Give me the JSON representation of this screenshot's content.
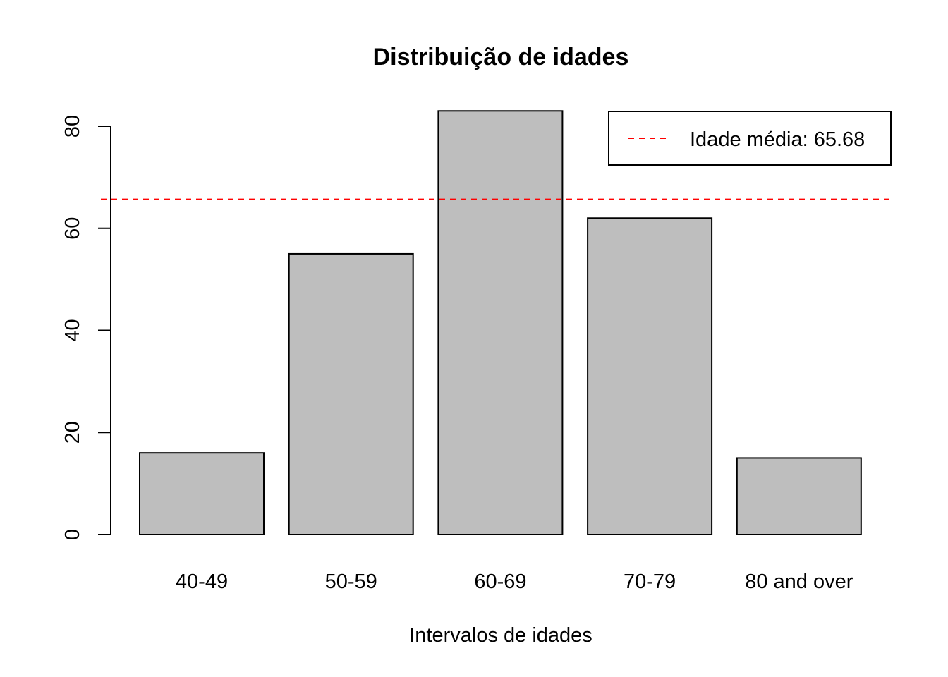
{
  "chart_data": {
    "type": "bar",
    "title": "Distribuição de idades",
    "xlabel": "Intervalos de idades",
    "ylabel": "",
    "categories": [
      "40-49",
      "50-59",
      "60-69",
      "70-79",
      "80 and over"
    ],
    "values": [
      16,
      55,
      83,
      62,
      15
    ],
    "ylim": [
      0,
      80
    ],
    "yticks": [
      0,
      20,
      40,
      60,
      80
    ],
    "bar_color": "#bebebe",
    "bar_border_color": "#000000",
    "reference_line": {
      "value": 65.68,
      "color": "#ff0000",
      "style": "dashed"
    },
    "legend": {
      "placement": "top-right",
      "entries": [
        "Idade média: 65.68"
      ]
    },
    "grid": false
  }
}
